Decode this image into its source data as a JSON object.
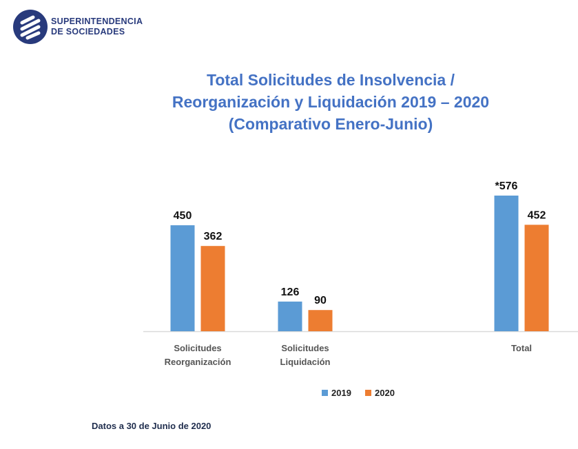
{
  "logo": {
    "line1": "SUPERINTENDENCIA",
    "line2": "DE SOCIEDADES"
  },
  "chart_data": {
    "type": "bar",
    "title": [
      "Total Solicitudes de Insolvencia /",
      "Reorganización y Liquidación 2019 – 2020",
      "(Comparativo Enero-Junio)"
    ],
    "categories": [
      [
        "Solicitudes",
        "Reorganización"
      ],
      [
        "Solicitudes",
        "Liquidación"
      ],
      [
        "Total"
      ]
    ],
    "series": [
      {
        "name": "2019",
        "color": "#5b9bd5",
        "values": [
          450,
          126,
          576
        ],
        "labels": [
          "450",
          "126",
          "*576"
        ]
      },
      {
        "name": "2020",
        "color": "#ed7d31",
        "values": [
          362,
          90,
          452
        ],
        "labels": [
          "362",
          "90",
          "452"
        ]
      }
    ],
    "legend": "bottom",
    "grid": false,
    "yaxis_visible": false
  },
  "footnote": "Datos a 30 de Junio de 2020"
}
